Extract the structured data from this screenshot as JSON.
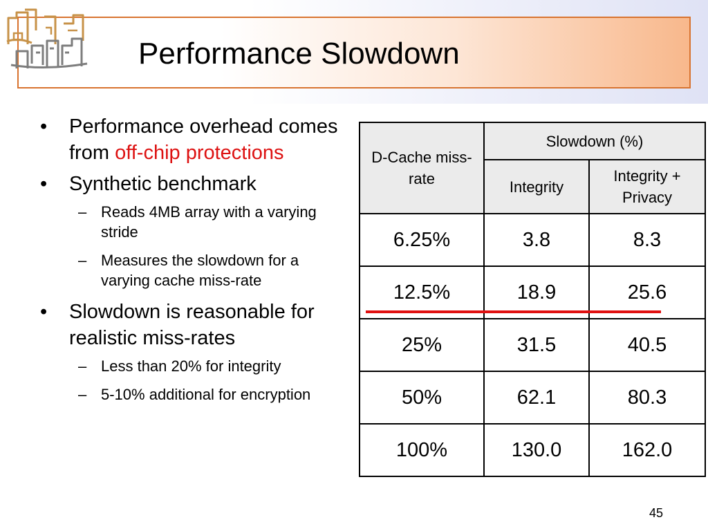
{
  "slide": {
    "title": "Performance Slowdown",
    "page_number": "45"
  },
  "bullets": [
    {
      "text_a": "Performance overhead comes from ",
      "text_red": "off-chip protections"
    },
    {
      "text": "Synthetic benchmark",
      "subs": [
        "Reads 4MB array with a varying stride",
        "Measures the slowdown for a varying cache miss-rate"
      ]
    },
    {
      "text": "Slowdown is reasonable for realistic miss-rates",
      "subs": [
        "Less than 20% for integrity",
        "5-10% additional for encryption"
      ]
    }
  ],
  "table": {
    "header": {
      "col1": "D-Cache miss-rate",
      "group": "Slowdown (%)",
      "col2": "Integrity",
      "col3": "Integrity + Privacy"
    },
    "rows": [
      [
        "6.25%",
        "3.8",
        "8.3"
      ],
      [
        "12.5%",
        "18.9",
        "25.6"
      ],
      [
        "25%",
        "31.5",
        "40.5"
      ],
      [
        "50%",
        "62.1",
        "80.3"
      ],
      [
        "100%",
        "130.0",
        "162.0"
      ]
    ]
  },
  "colors": {
    "title_border": "#d8732f",
    "highlight": "#dd1111"
  }
}
